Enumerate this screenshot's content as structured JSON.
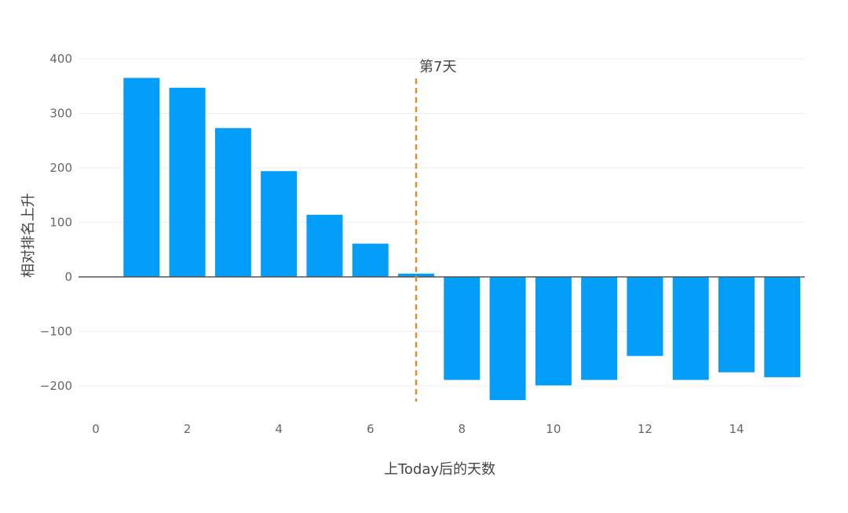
{
  "chart_data": {
    "type": "bar",
    "x": [
      1,
      2,
      3,
      4,
      5,
      6,
      7,
      8,
      9,
      10,
      11,
      12,
      13,
      14,
      15
    ],
    "values": [
      365,
      347,
      273,
      194,
      114,
      61,
      6,
      -189,
      -226,
      -199,
      -189,
      -145,
      -189,
      -175,
      -184
    ],
    "xlabel": "上Today后的天数",
    "ylabel": "相对排名上升",
    "xlim": [
      0,
      15.5
    ],
    "ylim": [
      -230,
      400
    ],
    "x_ticks": [
      "0",
      "2",
      "4",
      "6",
      "8",
      "10",
      "12",
      "14"
    ],
    "y_ticks": [
      "400",
      "300",
      "200",
      "100",
      "0",
      "−100",
      "−200"
    ],
    "grid": true,
    "annotation": {
      "text": "第7天",
      "x": 7,
      "line_style": "dashed"
    },
    "colors": {
      "bar": "#039dfa",
      "annotation_line": "#e0902a",
      "zero_line": "#555555",
      "grid": "#ececec"
    }
  }
}
